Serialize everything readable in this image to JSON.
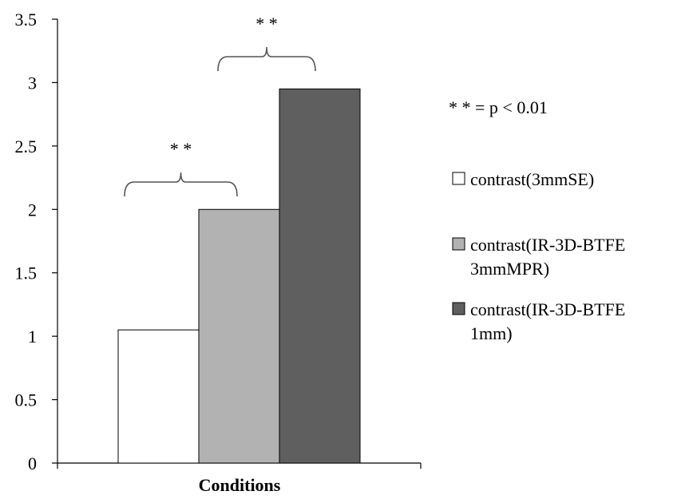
{
  "chart_data": {
    "type": "bar",
    "title": "",
    "xlabel": "Conditions",
    "ylabel": "",
    "ylim": [
      0,
      3.5
    ],
    "y_ticks": [
      "0",
      "0.5",
      "1",
      "1.5",
      "2",
      "2.5",
      "3",
      "3.5"
    ],
    "y_tick_values": [
      0,
      0.5,
      1,
      1.5,
      2,
      2.5,
      3,
      3.5
    ],
    "grid": false,
    "legend_position": "right",
    "series": [
      {
        "name": "contrast(3mmSE)",
        "name_lines": [
          "contrast(3mmSE)"
        ],
        "value": 1.05,
        "color": "#ffffff"
      },
      {
        "name": "contrast(IR-3D-BTFE 3mmMPR)",
        "name_lines": [
          "contrast(IR-3D-BTFE",
          "3mmMPR)"
        ],
        "value": 2.0,
        "color": "#b2b2b2"
      },
      {
        "name": "contrast(IR-3D-BTFE 1mm)",
        "name_lines": [
          "contrast(IR-3D-BTFE",
          "1mm)"
        ],
        "value": 2.95,
        "color": "#5f5f5f"
      }
    ],
    "significance": {
      "note": "* * = p < 0.01",
      "comparisons": [
        {
          "from": 0,
          "to": 1,
          "label": "* *"
        },
        {
          "from": 1,
          "to": 2,
          "label": "* *"
        }
      ]
    }
  }
}
